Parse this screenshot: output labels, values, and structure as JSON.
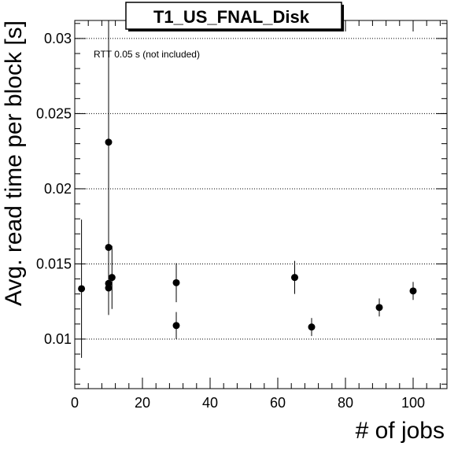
{
  "chart_data": {
    "type": "scatter",
    "title": "T1_US_FNAL_Disk",
    "xlabel": "# of jobs",
    "ylabel": "Avg. read time per block [s]",
    "xlim": [
      0,
      110
    ],
    "ylim": [
      0.0067,
      0.0312
    ],
    "x_ticks": [
      0,
      20,
      40,
      60,
      80,
      100
    ],
    "x_tick_labels": [
      "0",
      "20",
      "40",
      "60",
      "80",
      "100"
    ],
    "y_ticks": [
      0.01,
      0.015,
      0.02,
      0.025,
      0.03
    ],
    "y_tick_labels": [
      "0.01",
      "0.015",
      "0.02",
      "0.025",
      "0.03"
    ],
    "grid": "horizontal dotted at y ticks",
    "annotation": "RTT 0.05 s (not included)",
    "marker_color": "#000000",
    "points": [
      {
        "x": 2,
        "y": 0.01335,
        "err": 0.0046
      },
      {
        "x": 10,
        "y": 0.0231,
        "err": 0.0085
      },
      {
        "x": 10,
        "y": 0.0161,
        "err": 0.0045
      },
      {
        "x": 10,
        "y": 0.0137,
        "err": 0.0005
      },
      {
        "x": 10,
        "y": 0.0134,
        "err": 0.0004
      },
      {
        "x": 11,
        "y": 0.0141,
        "err": 0.0021
      },
      {
        "x": 30,
        "y": 0.01375,
        "err": 0.0013
      },
      {
        "x": 30,
        "y": 0.0109,
        "err": 0.0009
      },
      {
        "x": 65,
        "y": 0.0141,
        "err": 0.0011
      },
      {
        "x": 70,
        "y": 0.0108,
        "err": 0.0006
      },
      {
        "x": 90,
        "y": 0.0121,
        "err": 0.0006
      },
      {
        "x": 100,
        "y": 0.0132,
        "err": 0.0006
      }
    ]
  }
}
